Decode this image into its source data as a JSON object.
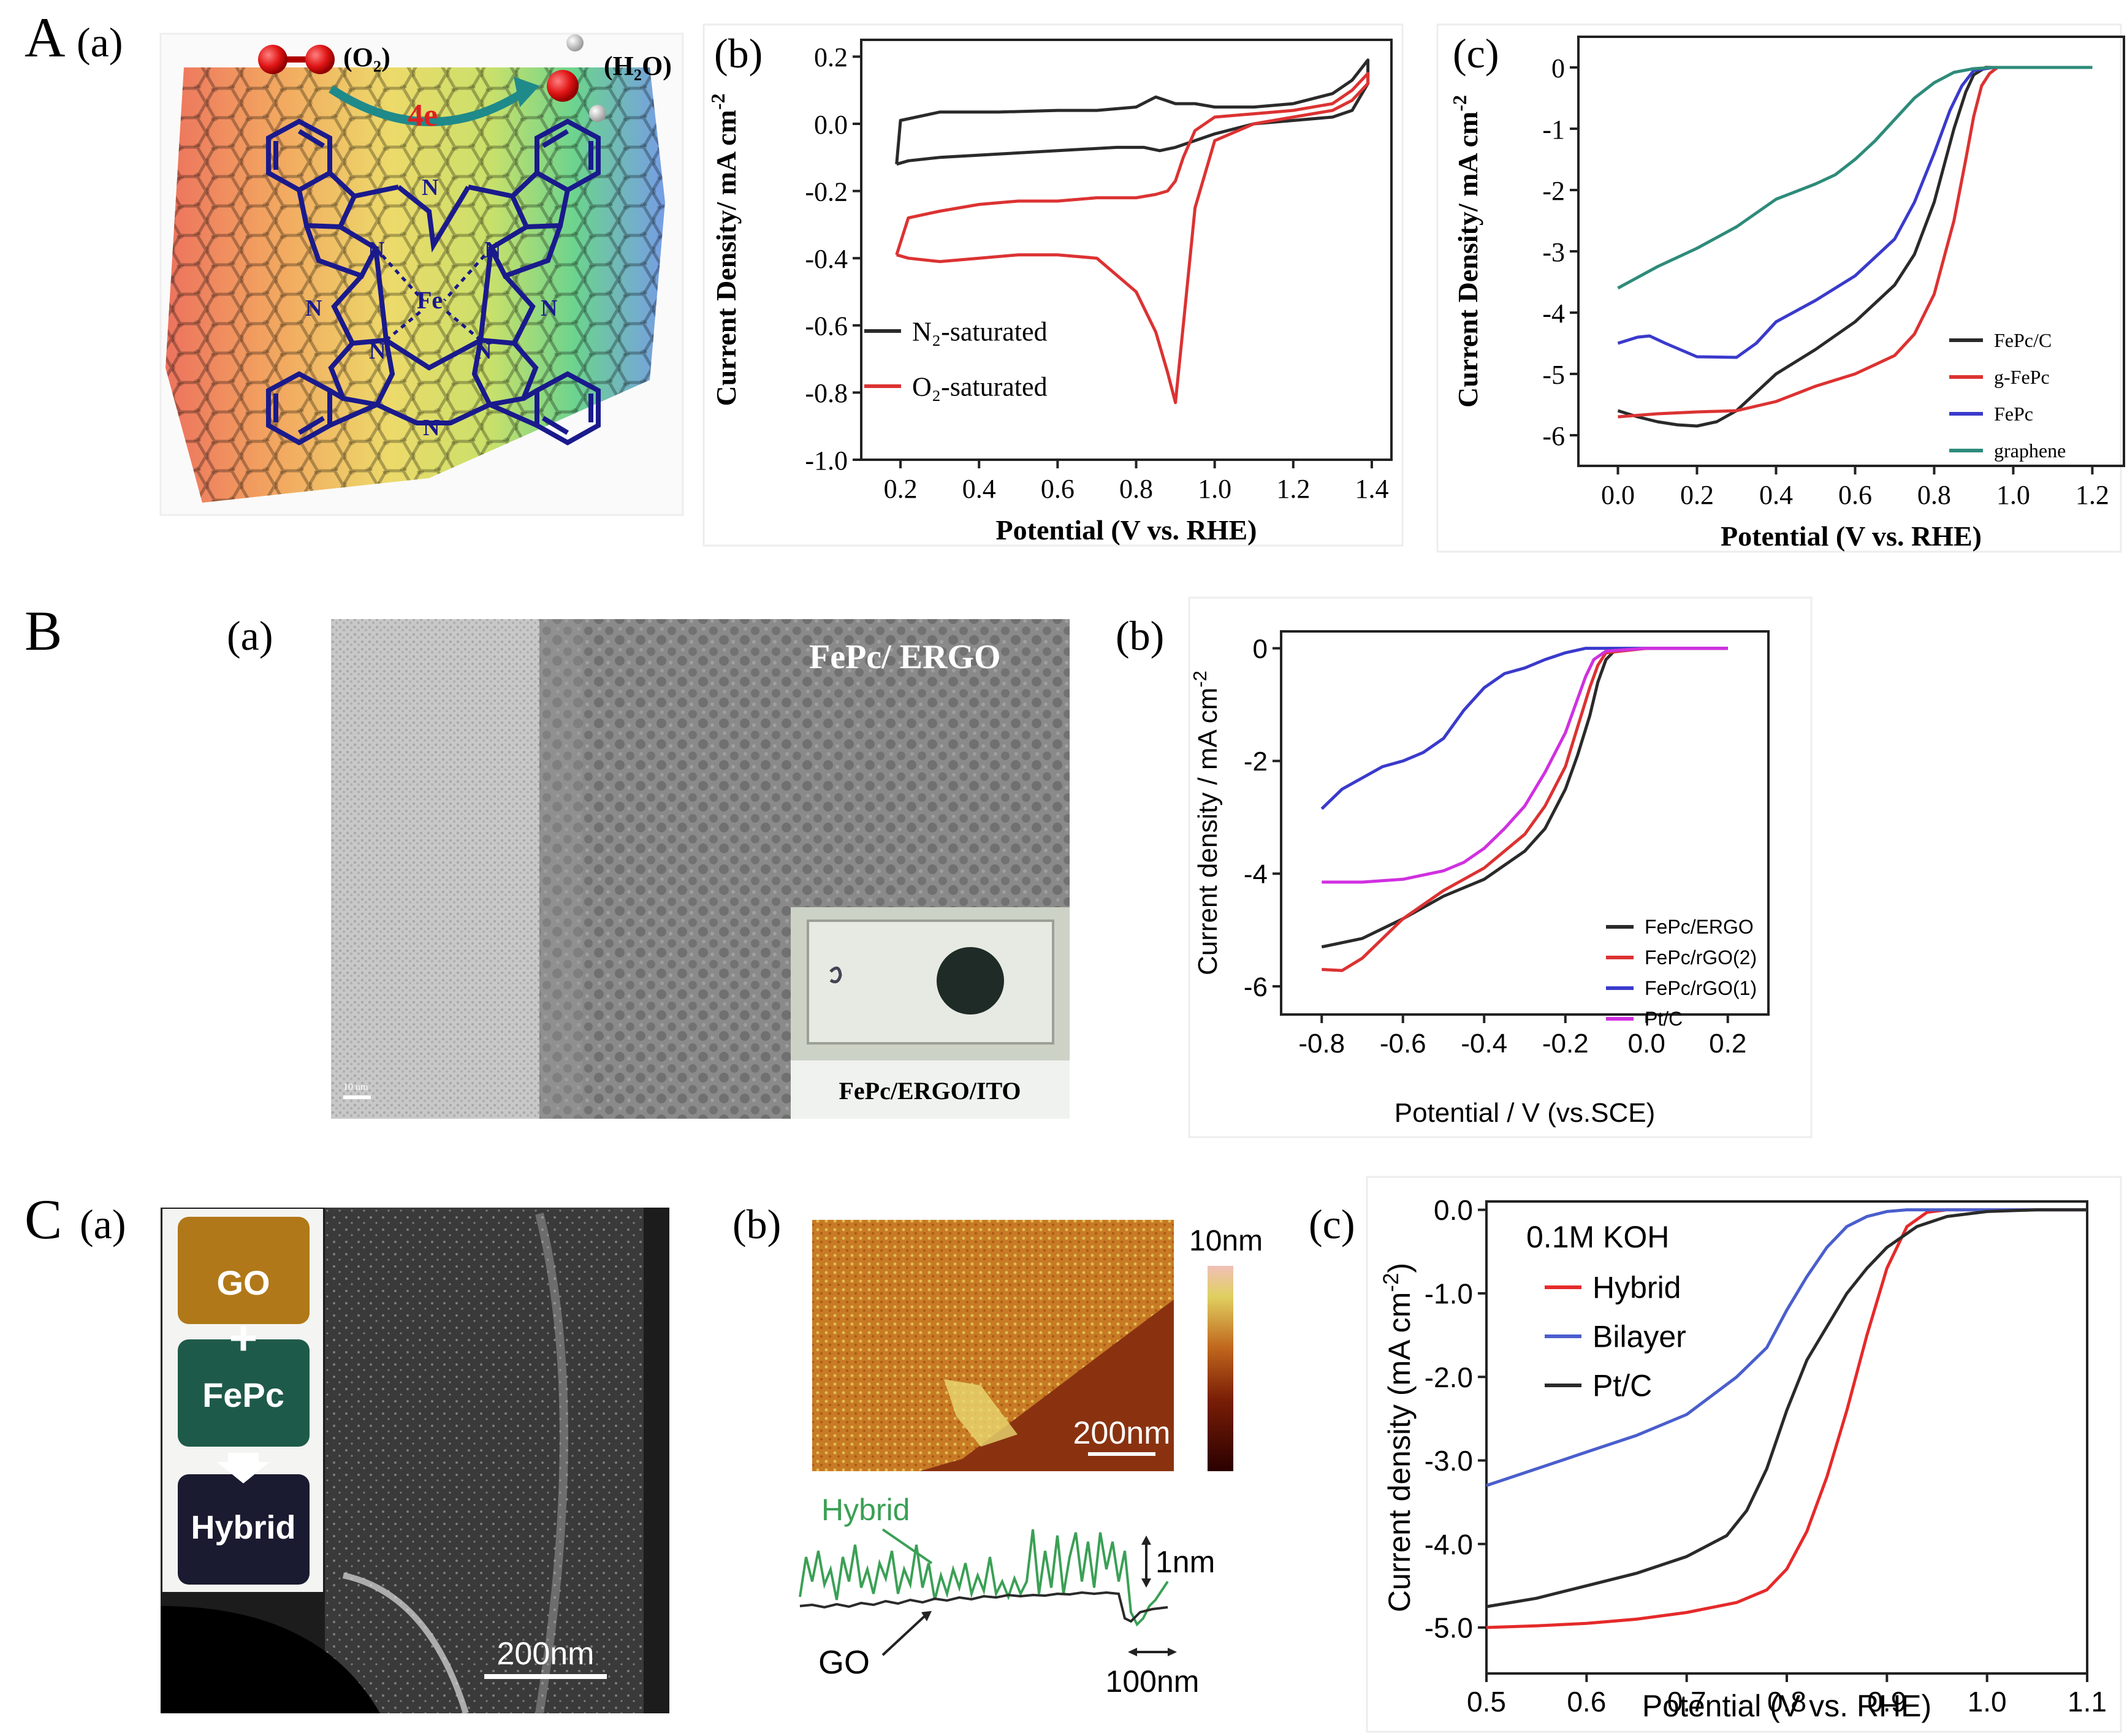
{
  "row_labels": [
    "A",
    "B",
    "C"
  ],
  "A": {
    "a": {
      "panel": "(a)",
      "o2": "(O₂)",
      "h2o": "(H₂O)",
      "electrons": "4e",
      "n_atom": "N",
      "fe_atom": "Fe"
    },
    "b_panel": "(b)",
    "c_panel": "(c)"
  },
  "B": {
    "a": {
      "panel": "(a)",
      "label": "FePc/ ERGO",
      "inset_label": "FePc/ERGO/ITO",
      "scale": "10 nm"
    },
    "b_panel": "(b)"
  },
  "C": {
    "a": {
      "panel": "(a)",
      "jar_top": "GO",
      "plus": "+",
      "jar_mid": "FePc",
      "jar_bottom": "Hybrid",
      "scale": "200nm"
    },
    "b": {
      "panel": "(b)",
      "scale_image": "200nm",
      "colorbar_max": "10nm",
      "hybrid_label": "Hybrid",
      "go_label": "GO",
      "height_scale": "1nm",
      "length_scale": "100nm"
    },
    "c_panel": "(c)"
  },
  "colors": {
    "black": "#2a2a2a",
    "red": "#dc3232",
    "blue": "#3a3acc",
    "teal": "#2e8b7a",
    "magenta": "#d030e0",
    "c_blue": "#4a5ecc",
    "c_red": "#e52a2a",
    "afm_green": "#3aa055"
  },
  "chart_data": [
    {
      "id": "A-b",
      "type": "line",
      "xlabel": "Potential (V vs. RHE)",
      "ylabel": "Current Density/ mA cm",
      "ylabel_sup": "-2",
      "xlim": [
        0.1,
        1.45
      ],
      "ylim": [
        -1.0,
        0.25
      ],
      "xticks": [
        "0.2",
        "0.4",
        "0.6",
        "0.8",
        "1.0",
        "1.2",
        "1.4"
      ],
      "xtick_values": [
        0.2,
        0.4,
        0.6,
        0.8,
        1.0,
        1.2,
        1.4
      ],
      "yticks": [
        "-1.0",
        "-0.8",
        "-0.6",
        "-0.4",
        "-0.2",
        "0.0",
        "0.2"
      ],
      "ytick_values": [
        -1.0,
        -0.8,
        -0.6,
        -0.4,
        -0.2,
        0.0,
        0.2
      ],
      "legend": [
        "N₂-saturated",
        "O₂-saturated"
      ],
      "series": [
        {
          "name": "N2-saturated",
          "color": "#2a2a2a",
          "x": [
            0.19,
            0.22,
            0.3,
            0.45,
            0.6,
            0.75,
            0.82,
            0.86,
            0.9,
            0.95,
            1.0,
            1.1,
            1.2,
            1.3,
            1.35,
            1.39,
            1.39,
            1.35,
            1.3,
            1.2,
            1.1,
            1.0,
            0.95,
            0.9,
            0.85,
            0.8,
            0.7,
            0.6,
            0.45,
            0.3,
            0.2,
            0.19
          ],
          "y": [
            -0.12,
            -0.11,
            -0.1,
            -0.09,
            -0.08,
            -0.07,
            -0.07,
            -0.08,
            -0.07,
            -0.05,
            -0.03,
            0.0,
            0.01,
            0.02,
            0.04,
            0.12,
            0.19,
            0.13,
            0.09,
            0.06,
            0.05,
            0.05,
            0.06,
            0.06,
            0.08,
            0.05,
            0.04,
            0.04,
            0.035,
            0.035,
            0.01,
            -0.12
          ]
        },
        {
          "name": "O2-saturated",
          "color": "#dc3232",
          "x": [
            0.19,
            0.22,
            0.3,
            0.4,
            0.5,
            0.6,
            0.7,
            0.8,
            0.85,
            0.88,
            0.9,
            0.92,
            0.95,
            1.0,
            1.1,
            1.2,
            1.3,
            1.35,
            1.39,
            1.39,
            1.35,
            1.3,
            1.2,
            1.1,
            1.0,
            0.95,
            0.92,
            0.9,
            0.88,
            0.85,
            0.8,
            0.7,
            0.6,
            0.5,
            0.4,
            0.3,
            0.22,
            0.19
          ],
          "y": [
            -0.39,
            -0.4,
            -0.41,
            -0.4,
            -0.39,
            -0.39,
            -0.4,
            -0.5,
            -0.62,
            -0.74,
            -0.83,
            -0.6,
            -0.25,
            -0.05,
            0.0,
            0.02,
            0.04,
            0.07,
            0.12,
            0.15,
            0.1,
            0.06,
            0.04,
            0.03,
            0.02,
            -0.02,
            -0.1,
            -0.17,
            -0.2,
            -0.21,
            -0.22,
            -0.22,
            -0.23,
            -0.23,
            -0.24,
            -0.26,
            -0.28,
            -0.39
          ]
        }
      ]
    },
    {
      "id": "A-c",
      "type": "line",
      "xlabel": "Potential (V vs. RHE)",
      "ylabel": "Current Density/ mA cm",
      "ylabel_sup": "-2",
      "xlim": [
        -0.1,
        1.28
      ],
      "ylim": [
        -6.5,
        0.5
      ],
      "xticks": [
        "0.0",
        "0.2",
        "0.4",
        "0.6",
        "0.8",
        "1.0",
        "1.2"
      ],
      "xtick_values": [
        0.0,
        0.2,
        0.4,
        0.6,
        0.8,
        1.0,
        1.2
      ],
      "yticks": [
        "-6",
        "-5",
        "-4",
        "-3",
        "-2",
        "-1",
        "0"
      ],
      "ytick_values": [
        -6,
        -5,
        -4,
        -3,
        -2,
        -1,
        0
      ],
      "legend": [
        "FePc/C",
        "g-FePc",
        "FePc",
        "graphene"
      ],
      "series": [
        {
          "name": "FePc/C",
          "color": "#2a2a2a",
          "x": [
            0.0,
            0.05,
            0.1,
            0.15,
            0.2,
            0.25,
            0.3,
            0.35,
            0.4,
            0.5,
            0.6,
            0.7,
            0.75,
            0.8,
            0.85,
            0.88,
            0.9,
            0.93,
            1.0,
            1.2
          ],
          "y": [
            -5.6,
            -5.7,
            -5.78,
            -5.83,
            -5.85,
            -5.78,
            -5.6,
            -5.3,
            -5.0,
            -4.6,
            -4.15,
            -3.55,
            -3.05,
            -2.2,
            -1.0,
            -0.4,
            -0.12,
            0.0,
            0.0,
            0.0
          ]
        },
        {
          "name": "g-FePc",
          "color": "#dc3232",
          "x": [
            0.0,
            0.1,
            0.2,
            0.3,
            0.4,
            0.5,
            0.6,
            0.7,
            0.75,
            0.8,
            0.85,
            0.88,
            0.9,
            0.92,
            0.94,
            0.96,
            1.0,
            1.2
          ],
          "y": [
            -5.7,
            -5.65,
            -5.62,
            -5.6,
            -5.45,
            -5.2,
            -5.0,
            -4.7,
            -4.35,
            -3.7,
            -2.5,
            -1.5,
            -0.8,
            -0.3,
            -0.1,
            0.0,
            0.0,
            0.0
          ]
        },
        {
          "name": "FePc",
          "color": "#3a3acc",
          "x": [
            0.0,
            0.05,
            0.08,
            0.12,
            0.2,
            0.3,
            0.35,
            0.4,
            0.5,
            0.6,
            0.7,
            0.75,
            0.8,
            0.84,
            0.87,
            0.9,
            0.95,
            1.2
          ],
          "y": [
            -4.5,
            -4.4,
            -4.38,
            -4.5,
            -4.72,
            -4.73,
            -4.5,
            -4.15,
            -3.8,
            -3.4,
            -2.8,
            -2.2,
            -1.4,
            -0.7,
            -0.3,
            -0.05,
            0.0,
            0.0
          ]
        },
        {
          "name": "graphene",
          "color": "#2e8b7a",
          "x": [
            0.0,
            0.1,
            0.2,
            0.3,
            0.4,
            0.5,
            0.55,
            0.6,
            0.65,
            0.7,
            0.75,
            0.8,
            0.85,
            0.9,
            0.95,
            1.2
          ],
          "y": [
            -3.6,
            -3.25,
            -2.95,
            -2.6,
            -2.15,
            -1.9,
            -1.75,
            -1.5,
            -1.2,
            -0.85,
            -0.5,
            -0.25,
            -0.08,
            -0.02,
            0.0,
            0.0
          ]
        }
      ]
    },
    {
      "id": "B-b",
      "type": "line",
      "font": "sans",
      "xlabel": "Potential / V (vs.SCE)",
      "ylabel": "Current density / mA cm",
      "ylabel_sup": "-2",
      "xlim": [
        -0.9,
        0.3
      ],
      "ylim": [
        -6.5,
        0.3
      ],
      "xticks": [
        "-0.8",
        "-0.6",
        "-0.4",
        "-0.2",
        "0.0",
        "0.2"
      ],
      "xtick_values": [
        -0.8,
        -0.6,
        -0.4,
        -0.2,
        0.0,
        0.2
      ],
      "yticks": [
        "-6",
        "-4",
        "-2",
        "0"
      ],
      "ytick_values": [
        -6,
        -4,
        -2,
        0
      ],
      "legend": [
        "FePc/ERGO",
        "FePc/rGO(2)",
        "FePc/rGO(1)",
        "Pt/C"
      ],
      "series": [
        {
          "name": "FePc/ERGO",
          "color": "#2a2a2a",
          "x": [
            -0.8,
            -0.7,
            -0.6,
            -0.5,
            -0.4,
            -0.3,
            -0.25,
            -0.2,
            -0.17,
            -0.14,
            -0.12,
            -0.1,
            -0.08,
            0.0,
            0.2
          ],
          "y": [
            -5.3,
            -5.15,
            -4.8,
            -4.4,
            -4.1,
            -3.6,
            -3.2,
            -2.5,
            -1.9,
            -1.2,
            -0.6,
            -0.2,
            -0.05,
            0.0,
            0.0
          ]
        },
        {
          "name": "FePc/rGO(2)",
          "color": "#dc3232",
          "x": [
            -0.8,
            -0.75,
            -0.7,
            -0.6,
            -0.5,
            -0.4,
            -0.3,
            -0.25,
            -0.2,
            -0.17,
            -0.14,
            -0.12,
            -0.1,
            0.0,
            0.2
          ],
          "y": [
            -5.7,
            -5.72,
            -5.5,
            -4.8,
            -4.3,
            -3.9,
            -3.3,
            -2.8,
            -2.1,
            -1.4,
            -0.7,
            -0.3,
            -0.08,
            0.0,
            0.0
          ]
        },
        {
          "name": "FePc/rGO(1)",
          "color": "#3a3acc",
          "x": [
            -0.8,
            -0.75,
            -0.7,
            -0.65,
            -0.6,
            -0.55,
            -0.5,
            -0.45,
            -0.4,
            -0.35,
            -0.3,
            -0.25,
            -0.2,
            -0.15,
            -0.1,
            0.0,
            0.2
          ],
          "y": [
            -2.85,
            -2.5,
            -2.3,
            -2.1,
            -2.0,
            -1.85,
            -1.6,
            -1.1,
            -0.7,
            -0.45,
            -0.35,
            -0.2,
            -0.08,
            0.0,
            0.0,
            0.0,
            0.0
          ]
        },
        {
          "name": "Pt/C",
          "color": "#d030e0",
          "x": [
            -0.8,
            -0.7,
            -0.6,
            -0.5,
            -0.45,
            -0.4,
            -0.35,
            -0.3,
            -0.25,
            -0.2,
            -0.17,
            -0.15,
            -0.13,
            -0.1,
            0.0,
            0.2
          ],
          "y": [
            -4.15,
            -4.15,
            -4.1,
            -3.95,
            -3.8,
            -3.55,
            -3.2,
            -2.8,
            -2.2,
            -1.5,
            -0.9,
            -0.5,
            -0.2,
            -0.05,
            0.0,
            0.0
          ]
        }
      ]
    },
    {
      "id": "C-c",
      "type": "line",
      "font": "sans",
      "xlabel": "Potential (V vs. RHE)",
      "ylabel": "Current density (mA cm",
      "ylabel_sup": "-2",
      "ylabel_end": ")",
      "xlim": [
        0.5,
        1.1
      ],
      "ylim": [
        -5.55,
        0.1
      ],
      "xticks": [
        "0.5",
        "0.6",
        "0.7",
        "0.8",
        "0.9",
        "1.0",
        "1.1"
      ],
      "xtick_values": [
        0.5,
        0.6,
        0.7,
        0.8,
        0.9,
        1.0,
        1.1
      ],
      "yticks": [
        "-5.0",
        "-4.0",
        "-3.0",
        "-2.0",
        "-1.0",
        "0.0"
      ],
      "ytick_values": [
        -5.0,
        -4.0,
        -3.0,
        -2.0,
        -1.0,
        0.0
      ],
      "annotation": "0.1M KOH",
      "legend": [
        "Hybrid",
        "Bilayer",
        "Pt/C"
      ],
      "series": [
        {
          "name": "Hybrid",
          "color": "#e52a2a",
          "x": [
            0.5,
            0.55,
            0.6,
            0.65,
            0.7,
            0.75,
            0.78,
            0.8,
            0.82,
            0.84,
            0.86,
            0.88,
            0.9,
            0.92,
            0.94,
            0.96,
            1.1
          ],
          "y": [
            -5.0,
            -4.98,
            -4.95,
            -4.9,
            -4.82,
            -4.7,
            -4.55,
            -4.3,
            -3.85,
            -3.2,
            -2.4,
            -1.5,
            -0.7,
            -0.2,
            -0.03,
            0.0,
            0.0
          ]
        },
        {
          "name": "Bilayer",
          "color": "#4a5ecc",
          "x": [
            0.5,
            0.55,
            0.6,
            0.65,
            0.7,
            0.75,
            0.78,
            0.8,
            0.82,
            0.84,
            0.86,
            0.88,
            0.9,
            0.92,
            0.94,
            1.1
          ],
          "y": [
            -3.3,
            -3.1,
            -2.9,
            -2.7,
            -2.45,
            -2.0,
            -1.65,
            -1.2,
            -0.8,
            -0.45,
            -0.2,
            -0.08,
            -0.02,
            0.0,
            0.0,
            0.0
          ]
        },
        {
          "name": "Pt/C",
          "color": "#2a2a2a",
          "x": [
            0.5,
            0.55,
            0.6,
            0.65,
            0.7,
            0.74,
            0.76,
            0.78,
            0.8,
            0.82,
            0.84,
            0.86,
            0.88,
            0.9,
            0.93,
            0.96,
            1.0,
            1.05,
            1.1
          ],
          "y": [
            -4.75,
            -4.65,
            -4.5,
            -4.35,
            -4.15,
            -3.9,
            -3.6,
            -3.1,
            -2.4,
            -1.8,
            -1.4,
            -1.0,
            -0.7,
            -0.45,
            -0.2,
            -0.08,
            -0.02,
            0.0,
            0.0
          ]
        }
      ]
    }
  ]
}
